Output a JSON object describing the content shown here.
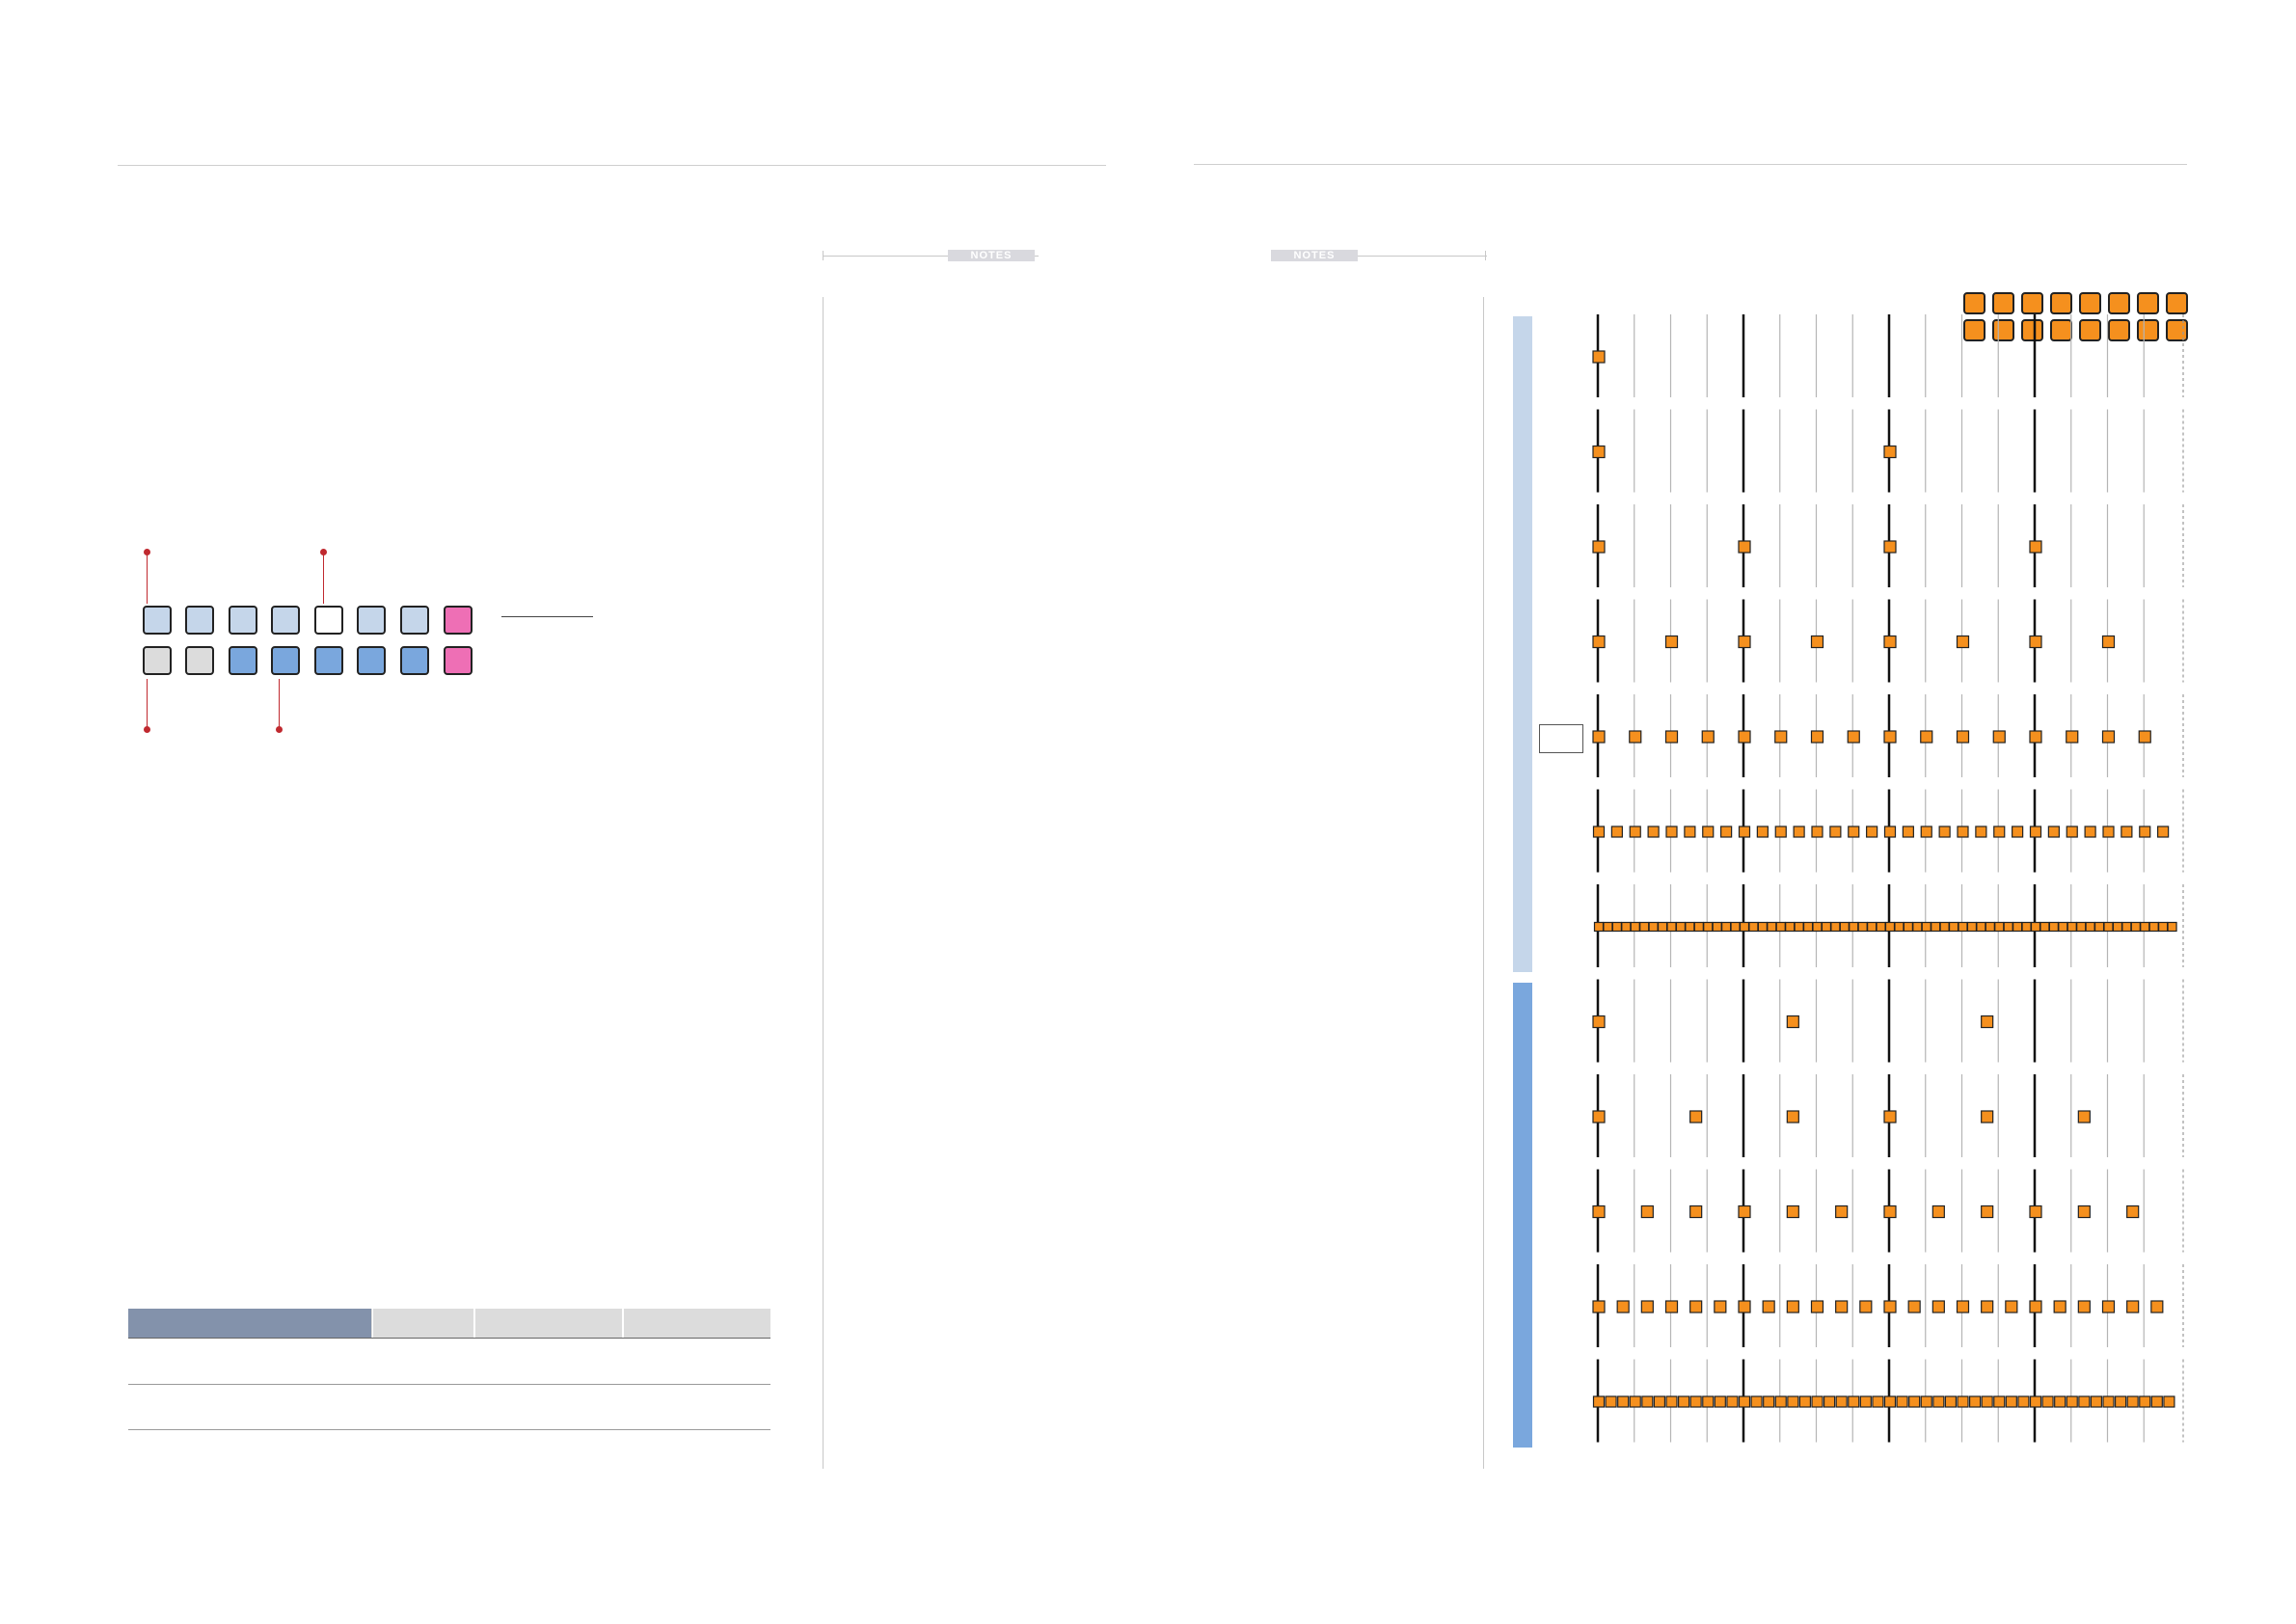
{
  "page": {
    "left_notes_label": "NOTES",
    "right_notes_label": "NOTES"
  },
  "colors": {
    "rule": "#cfcfcf",
    "step_light_blue": "#c5d6ea",
    "step_blue": "#7aa7dd",
    "step_gray": "#dcdcdc",
    "step_white": "#ffffff",
    "step_pink": "#ee6fb5",
    "callout_red": "#c0292f",
    "table_header_dark": "#8392ab",
    "table_header_light": "#dcdcdc",
    "band_light_blue": "#c5d6ea",
    "band_blue": "#7aa7dd",
    "note_orange": "#f5901e"
  },
  "step_buttons": {
    "top_row": [
      "step_light_blue",
      "step_light_blue",
      "step_light_blue",
      "step_light_blue",
      "step_white",
      "step_light_blue",
      "step_light_blue",
      "step_pink"
    ],
    "bottom_row": [
      "step_gray",
      "step_gray",
      "step_blue",
      "step_blue",
      "step_blue",
      "step_blue",
      "step_blue",
      "step_pink"
    ]
  },
  "table": {
    "headers": [
      "",
      "",
      "",
      ""
    ],
    "rows": [
      [
        "",
        "",
        "",
        ""
      ],
      [
        "",
        "",
        "",
        ""
      ]
    ]
  },
  "rhythm_chart": {
    "legend_buttons": 16,
    "rows": [
      {
        "group": "light",
        "notes_per_bar": 1
      },
      {
        "group": "light",
        "notes_per_bar": 2
      },
      {
        "group": "light",
        "notes_per_bar": 4
      },
      {
        "group": "light",
        "notes_per_bar": 8
      },
      {
        "group": "light",
        "notes_per_bar": 16
      },
      {
        "group": "light",
        "notes_per_bar": 32
      },
      {
        "group": "light",
        "notes_per_bar": 64
      },
      {
        "group": "dark",
        "notes_per_bar": 3,
        "spacing": "triplet-half"
      },
      {
        "group": "dark",
        "notes_per_bar": 6,
        "spacing": "triplet-quarter"
      },
      {
        "group": "dark",
        "notes_per_bar": 12,
        "spacing": "triplet-eighth"
      },
      {
        "group": "dark",
        "notes_per_bar": 24,
        "spacing": "triplet-16th"
      },
      {
        "group": "dark",
        "notes_per_bar": 48,
        "spacing": "triplet-32nd"
      }
    ]
  }
}
